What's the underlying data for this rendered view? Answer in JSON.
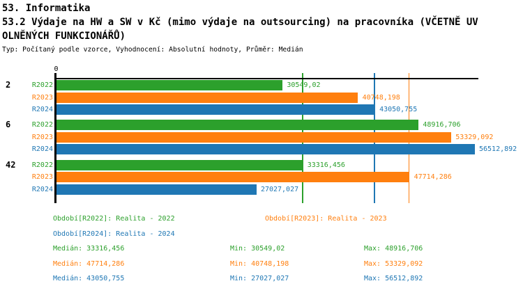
{
  "header": {
    "title": "53. Informatika",
    "subtitle_line1": "53.2 Výdaje na HW a SW v Kč (mimo výdaje na outsourcing) na pracovníka (VČETNĚ UV",
    "subtitle_line2": "OLNĚNÝCH FUNKCIONÁŘŮ)",
    "meta": "Typ: Počítaný podle vzorce, Vyhodnocení: Absolutní hodnoty, Průměr: Medián"
  },
  "chart_data": {
    "type": "bar",
    "orientation": "horizontal",
    "x_axis": {
      "zero_label": "0",
      "min": 0
    },
    "colors": {
      "R2022": "#2ca02c",
      "R2023": "#ff7f0e",
      "R2024": "#1f77b4",
      "axis": "#000000"
    },
    "categories": [
      "2",
      "6",
      "42"
    ],
    "groups": [
      {
        "category": "2",
        "bars": [
          {
            "series": "R2022",
            "value": 30549.02,
            "label": "30549,02"
          },
          {
            "series": "R2023",
            "value": 40748.198,
            "label": "40748,198"
          },
          {
            "series": "R2024",
            "value": 43050.755,
            "label": "43050,755"
          }
        ]
      },
      {
        "category": "6",
        "bars": [
          {
            "series": "R2022",
            "value": 48916.706,
            "label": "48916,706"
          },
          {
            "series": "R2023",
            "value": 53329.092,
            "label": "53329,092"
          },
          {
            "series": "R2024",
            "value": 56512.892,
            "label": "56512,892"
          }
        ]
      },
      {
        "category": "42",
        "bars": [
          {
            "series": "R2022",
            "value": 33316.456,
            "label": "33316,456"
          },
          {
            "series": "R2023",
            "value": 47714.286,
            "label": "47714,286"
          },
          {
            "series": "R2024",
            "value": 27027.027,
            "label": "27027,027"
          }
        ]
      }
    ],
    "median_lines": [
      {
        "series": "R2022",
        "value": 33316.456
      },
      {
        "series": "R2024",
        "value": 43050.755
      },
      {
        "series": "R2023",
        "value": 47714.286
      }
    ]
  },
  "legend": {
    "periods": [
      {
        "series": "R2022",
        "text": "Období[R2022]: Realita - 2022"
      },
      {
        "series": "R2023",
        "text": "Období[R2023]: Realita - 2023"
      },
      {
        "series": "R2024",
        "text": "Období[R2024]: Realita - 2024"
      }
    ],
    "stats": [
      {
        "series": "R2022",
        "median": "Medián: 33316,456",
        "min": "Min: 30549,02",
        "max": "Max: 48916,706"
      },
      {
        "series": "R2023",
        "median": "Medián: 47714,286",
        "min": "Min: 40748,198",
        "max": "Max: 53329,092"
      },
      {
        "series": "R2024",
        "median": "Medián: 43050,755",
        "min": "Min: 27027,027",
        "max": "Max: 56512,892"
      }
    ]
  }
}
